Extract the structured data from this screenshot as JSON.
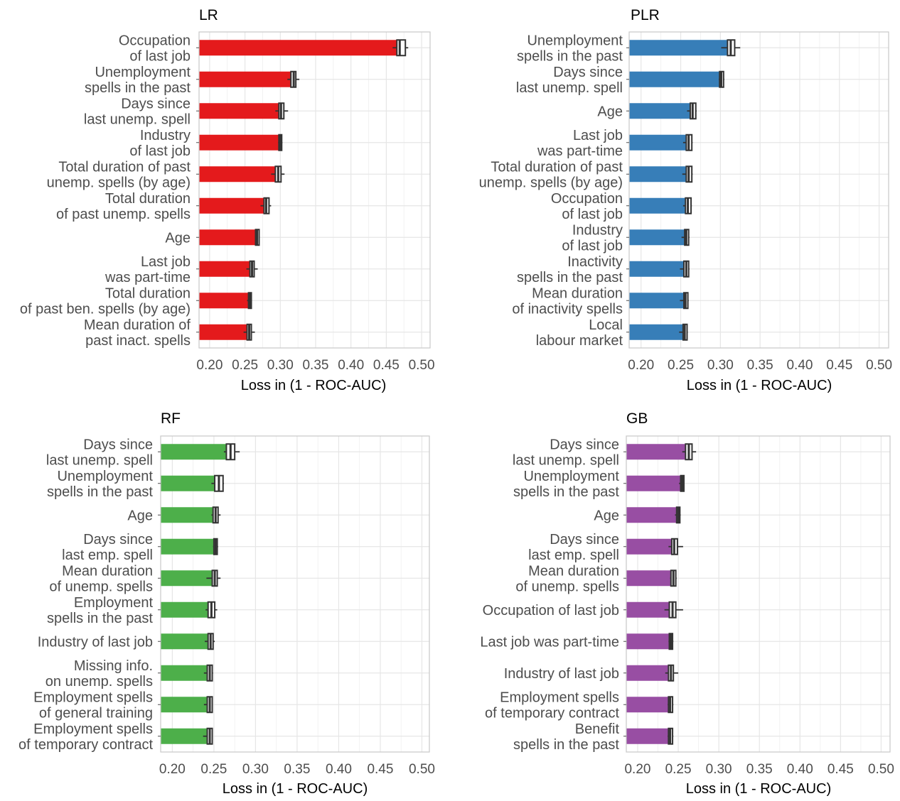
{
  "colors": {
    "LR": "#e41a1c",
    "PLR": "#377eb8",
    "RF": "#4daf4a",
    "GB": "#984ea3",
    "grid": "#e6e6e6",
    "border": "#c8c8c8",
    "box": "#333333"
  },
  "chart_data": [
    {
      "type": "bar",
      "orientation": "horizontal",
      "title": "LR",
      "xlabel": "Loss in (1 - ROC-AUC)",
      "ylabel": "",
      "xlim": [
        0.185,
        0.512
      ],
      "xticks": [
        "0.20",
        "0.25",
        "0.30",
        "0.35",
        "0.40",
        "0.45",
        "0.50"
      ],
      "grid": true,
      "categories": [
        [
          "Occupation",
          "of last job"
        ],
        [
          "Unemployment",
          "spells in the past"
        ],
        [
          "Days since",
          "last unemp. spell"
        ],
        [
          "Industry",
          "of last job"
        ],
        [
          "Total duration of past",
          "unemp. spells (by age)"
        ],
        [
          "Total duration",
          "of past unemp. spells"
        ],
        [
          "Age"
        ],
        [
          "Last job",
          "was part-time"
        ],
        [
          "Total duration",
          "of past ben. spells (by age)"
        ],
        [
          "Mean duration of",
          "past inact. spells"
        ]
      ],
      "values": [
        0.465,
        0.315,
        0.298,
        0.298,
        0.293,
        0.277,
        0.265,
        0.257,
        0.255,
        0.253
      ],
      "box": [
        [
          0.465,
          0.469,
          0.477,
          0.459,
          0.481
        ],
        [
          0.315,
          0.319,
          0.322,
          0.31,
          0.327
        ],
        [
          0.298,
          0.301,
          0.305,
          0.293,
          0.311
        ],
        [
          0.298,
          0.3,
          0.302,
          0.297,
          0.303
        ],
        [
          0.293,
          0.297,
          0.301,
          0.287,
          0.306
        ],
        [
          0.277,
          0.28,
          0.284,
          0.272,
          0.287
        ],
        [
          0.265,
          0.267,
          0.27,
          0.264,
          0.271
        ],
        [
          0.257,
          0.26,
          0.263,
          0.252,
          0.268
        ],
        [
          0.255,
          0.257,
          0.259,
          0.253,
          0.26
        ],
        [
          0.253,
          0.256,
          0.259,
          0.248,
          0.264
        ]
      ]
    },
    {
      "type": "bar",
      "orientation": "horizontal",
      "title": "PLR",
      "xlabel": "Loss in (1 - ROC-AUC)",
      "ylabel": "",
      "xlim": [
        0.185,
        0.512
      ],
      "xticks": [
        "0.20",
        "0.25",
        "0.30",
        "0.35",
        "0.40",
        "0.45",
        "0.50"
      ],
      "grid": true,
      "categories": [
        [
          "Unemployment",
          "spells in the past"
        ],
        [
          "Days since",
          "last unemp. spell"
        ],
        [
          "Age"
        ],
        [
          "Last job",
          "was part-time"
        ],
        [
          "Total duration of past",
          "unemp. spells (by age)"
        ],
        [
          "Occupation",
          "of last job"
        ],
        [
          "Industry",
          "of last job"
        ],
        [
          "Inactivity",
          "spells in the past"
        ],
        [
          "Mean duration",
          "of inactivity spells"
        ],
        [
          "Local",
          "labour market"
        ]
      ],
      "values": [
        0.309,
        0.299,
        0.262,
        0.257,
        0.257,
        0.256,
        0.255,
        0.254,
        0.254,
        0.253
      ],
      "box": [
        [
          0.309,
          0.313,
          0.318,
          0.301,
          0.325
        ],
        [
          0.299,
          0.301,
          0.304,
          0.298,
          0.305
        ],
        [
          0.262,
          0.265,
          0.269,
          0.258,
          0.27
        ],
        [
          0.257,
          0.26,
          0.264,
          0.253,
          0.265
        ],
        [
          0.257,
          0.26,
          0.264,
          0.252,
          0.265
        ],
        [
          0.256,
          0.259,
          0.263,
          0.253,
          0.264
        ],
        [
          0.255,
          0.257,
          0.26,
          0.251,
          0.261
        ],
        [
          0.254,
          0.257,
          0.26,
          0.249,
          0.261
        ],
        [
          0.254,
          0.256,
          0.259,
          0.249,
          0.26
        ],
        [
          0.253,
          0.255,
          0.258,
          0.248,
          0.259
        ]
      ]
    },
    {
      "type": "bar",
      "orientation": "horizontal",
      "title": "RF",
      "xlabel": "Loss in (1 - ROC-AUC)",
      "ylabel": "",
      "xlim": [
        0.186,
        0.509
      ],
      "xticks": [
        "0.20",
        "0.25",
        "0.30",
        "0.35",
        "0.40",
        "0.45",
        "0.50"
      ],
      "grid": true,
      "categories": [
        [
          "Days since",
          "last unemp. spell"
        ],
        [
          "Unemployment",
          "spells in the past"
        ],
        [
          "Age"
        ],
        [
          "Days since",
          "last emp. spell"
        ],
        [
          "Mean duration",
          "of unemp. spells"
        ],
        [
          "Employment",
          "spells in the past"
        ],
        [
          "Industry of last job"
        ],
        [
          "Missing info.",
          "on unemp. spells"
        ],
        [
          "Employment spells",
          "of general training"
        ],
        [
          "Employment spells",
          "of temporary contract"
        ]
      ],
      "values": [
        0.265,
        0.251,
        0.249,
        0.25,
        0.248,
        0.243,
        0.243,
        0.242,
        0.242,
        0.242
      ],
      "box": [
        [
          0.265,
          0.27,
          0.275,
          0.262,
          0.281
        ],
        [
          0.251,
          0.256,
          0.261,
          0.247,
          0.262
        ],
        [
          0.249,
          0.252,
          0.255,
          0.247,
          0.258
        ],
        [
          0.25,
          0.252,
          0.254,
          0.249,
          0.255
        ],
        [
          0.248,
          0.251,
          0.254,
          0.241,
          0.258
        ],
        [
          0.243,
          0.247,
          0.251,
          0.24,
          0.254
        ],
        [
          0.243,
          0.246,
          0.249,
          0.239,
          0.251
        ],
        [
          0.242,
          0.245,
          0.248,
          0.238,
          0.249
        ],
        [
          0.242,
          0.245,
          0.248,
          0.238,
          0.248
        ],
        [
          0.242,
          0.245,
          0.248,
          0.237,
          0.248
        ]
      ]
    },
    {
      "type": "bar",
      "orientation": "horizontal",
      "title": "GB",
      "xlabel": "Loss in (1 - ROC-AUC)",
      "ylabel": "",
      "xlim": [
        0.186,
        0.511
      ],
      "xticks": [
        "0.20",
        "0.25",
        "0.30",
        "0.35",
        "0.40",
        "0.45",
        "0.50"
      ],
      "grid": true,
      "categories": [
        [
          "Days since",
          "last unemp. spell"
        ],
        [
          "Unemployment",
          "spells in the past"
        ],
        [
          "Age"
        ],
        [
          "Days since",
          "last emp. spell"
        ],
        [
          "Mean duration",
          "of unemp. spells"
        ],
        [
          "Occupation of last job"
        ],
        [
          "Last job was part-time"
        ],
        [
          "Industry of last job"
        ],
        [
          "Employment spells",
          "of temporary contract"
        ],
        [
          "Benefit",
          "spells in the past"
        ]
      ],
      "values": [
        0.259,
        0.253,
        0.248,
        0.242,
        0.241,
        0.239,
        0.239,
        0.238,
        0.238,
        0.238
      ],
      "box": [
        [
          0.259,
          0.263,
          0.267,
          0.255,
          0.272
        ],
        [
          0.253,
          0.255,
          0.257,
          0.251,
          0.257
        ],
        [
          0.248,
          0.25,
          0.252,
          0.246,
          0.253
        ],
        [
          0.242,
          0.245,
          0.249,
          0.238,
          0.256
        ],
        [
          0.241,
          0.244,
          0.247,
          0.24,
          0.248
        ],
        [
          0.239,
          0.243,
          0.247,
          0.233,
          0.256
        ],
        [
          0.239,
          0.241,
          0.243,
          0.238,
          0.244
        ],
        [
          0.238,
          0.241,
          0.244,
          0.234,
          0.25
        ],
        [
          0.238,
          0.24,
          0.243,
          0.237,
          0.244
        ],
        [
          0.238,
          0.24,
          0.243,
          0.237,
          0.244
        ]
      ]
    }
  ]
}
